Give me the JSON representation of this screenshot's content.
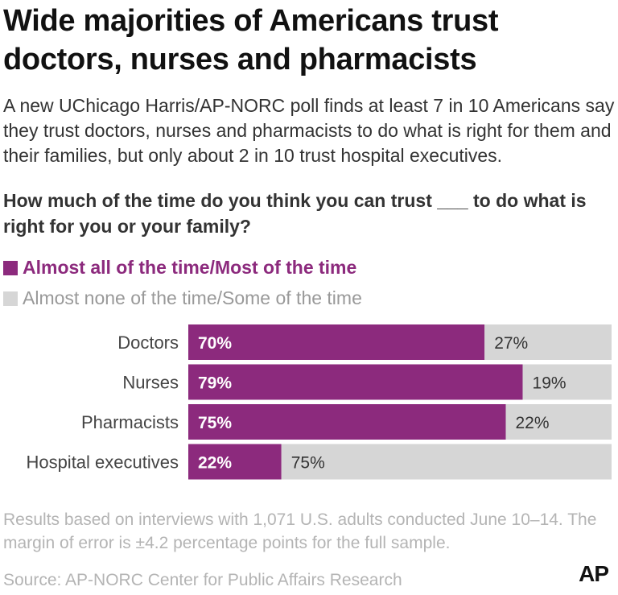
{
  "title": "Wide majorities of Americans trust doctors, nurses and pharmacists",
  "subtitle": "A new UChicago Harris/AP-NORC poll finds at least 7 in 10 Americans say they trust doctors, nurses and pharmacists to do what is right for them and their families, but only about 2 in 10 trust hospital executives.",
  "question": "How much of the time do you think you can trust ___ to do what is right for you or your family?",
  "legend": {
    "series1": "Almost all of the time/Most of the time",
    "series2": "Almost none of the time/Some of the time"
  },
  "colors": {
    "series1": "#8c2a7d",
    "series2": "#d6d6d6"
  },
  "chart_data": {
    "type": "bar",
    "orientation": "horizontal",
    "stacked": true,
    "categories": [
      "Doctors",
      "Nurses",
      "Pharmacists",
      "Hospital executives"
    ],
    "series": [
      {
        "name": "Almost all of the time/Most of the time",
        "values": [
          70,
          79,
          75,
          22
        ]
      },
      {
        "name": "Almost none of the time/Some of the time",
        "values": [
          27,
          19,
          22,
          75
        ]
      }
    ],
    "xlim": [
      0,
      100
    ],
    "value_suffix": "%",
    "legend_position": "top-left",
    "grid": false
  },
  "note": "Results based on interviews with 1,071 U.S. adults conducted June 10–14. The margin of error is ±4.2 percentage points for the full sample.",
  "source": "Source: AP-NORC Center for Public Affairs Research",
  "logo": "AP"
}
